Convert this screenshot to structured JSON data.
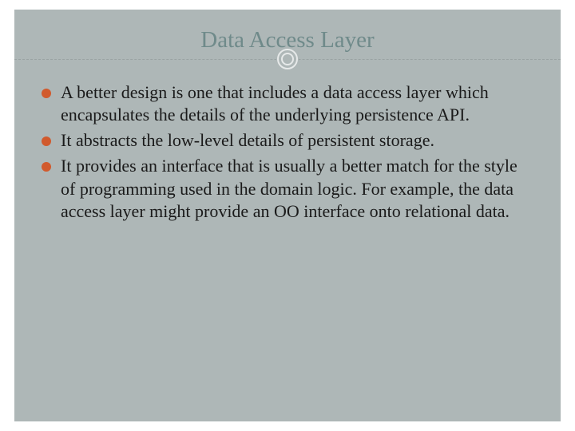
{
  "slide": {
    "title": "Data Access Layer",
    "background_color": "#aeb7b7",
    "title_color": "#6f8a8a",
    "title_fontsize": 29,
    "divider_color": "#9aa3a3",
    "circle_border_color": "#e6e9e9",
    "bullet_color": "#d15a2d",
    "text_color": "#1a1a1a",
    "text_fontsize": 22,
    "bullets": [
      "A better design is one that includes a data access layer which encapsulates the details of the underlying persistence API.",
      "It abstracts the low-level details of persistent storage.",
      "It provides an interface that is usually a better match for the style of programming used in the domain logic. For example, the data access layer might provide an OO interface onto relational data."
    ]
  }
}
